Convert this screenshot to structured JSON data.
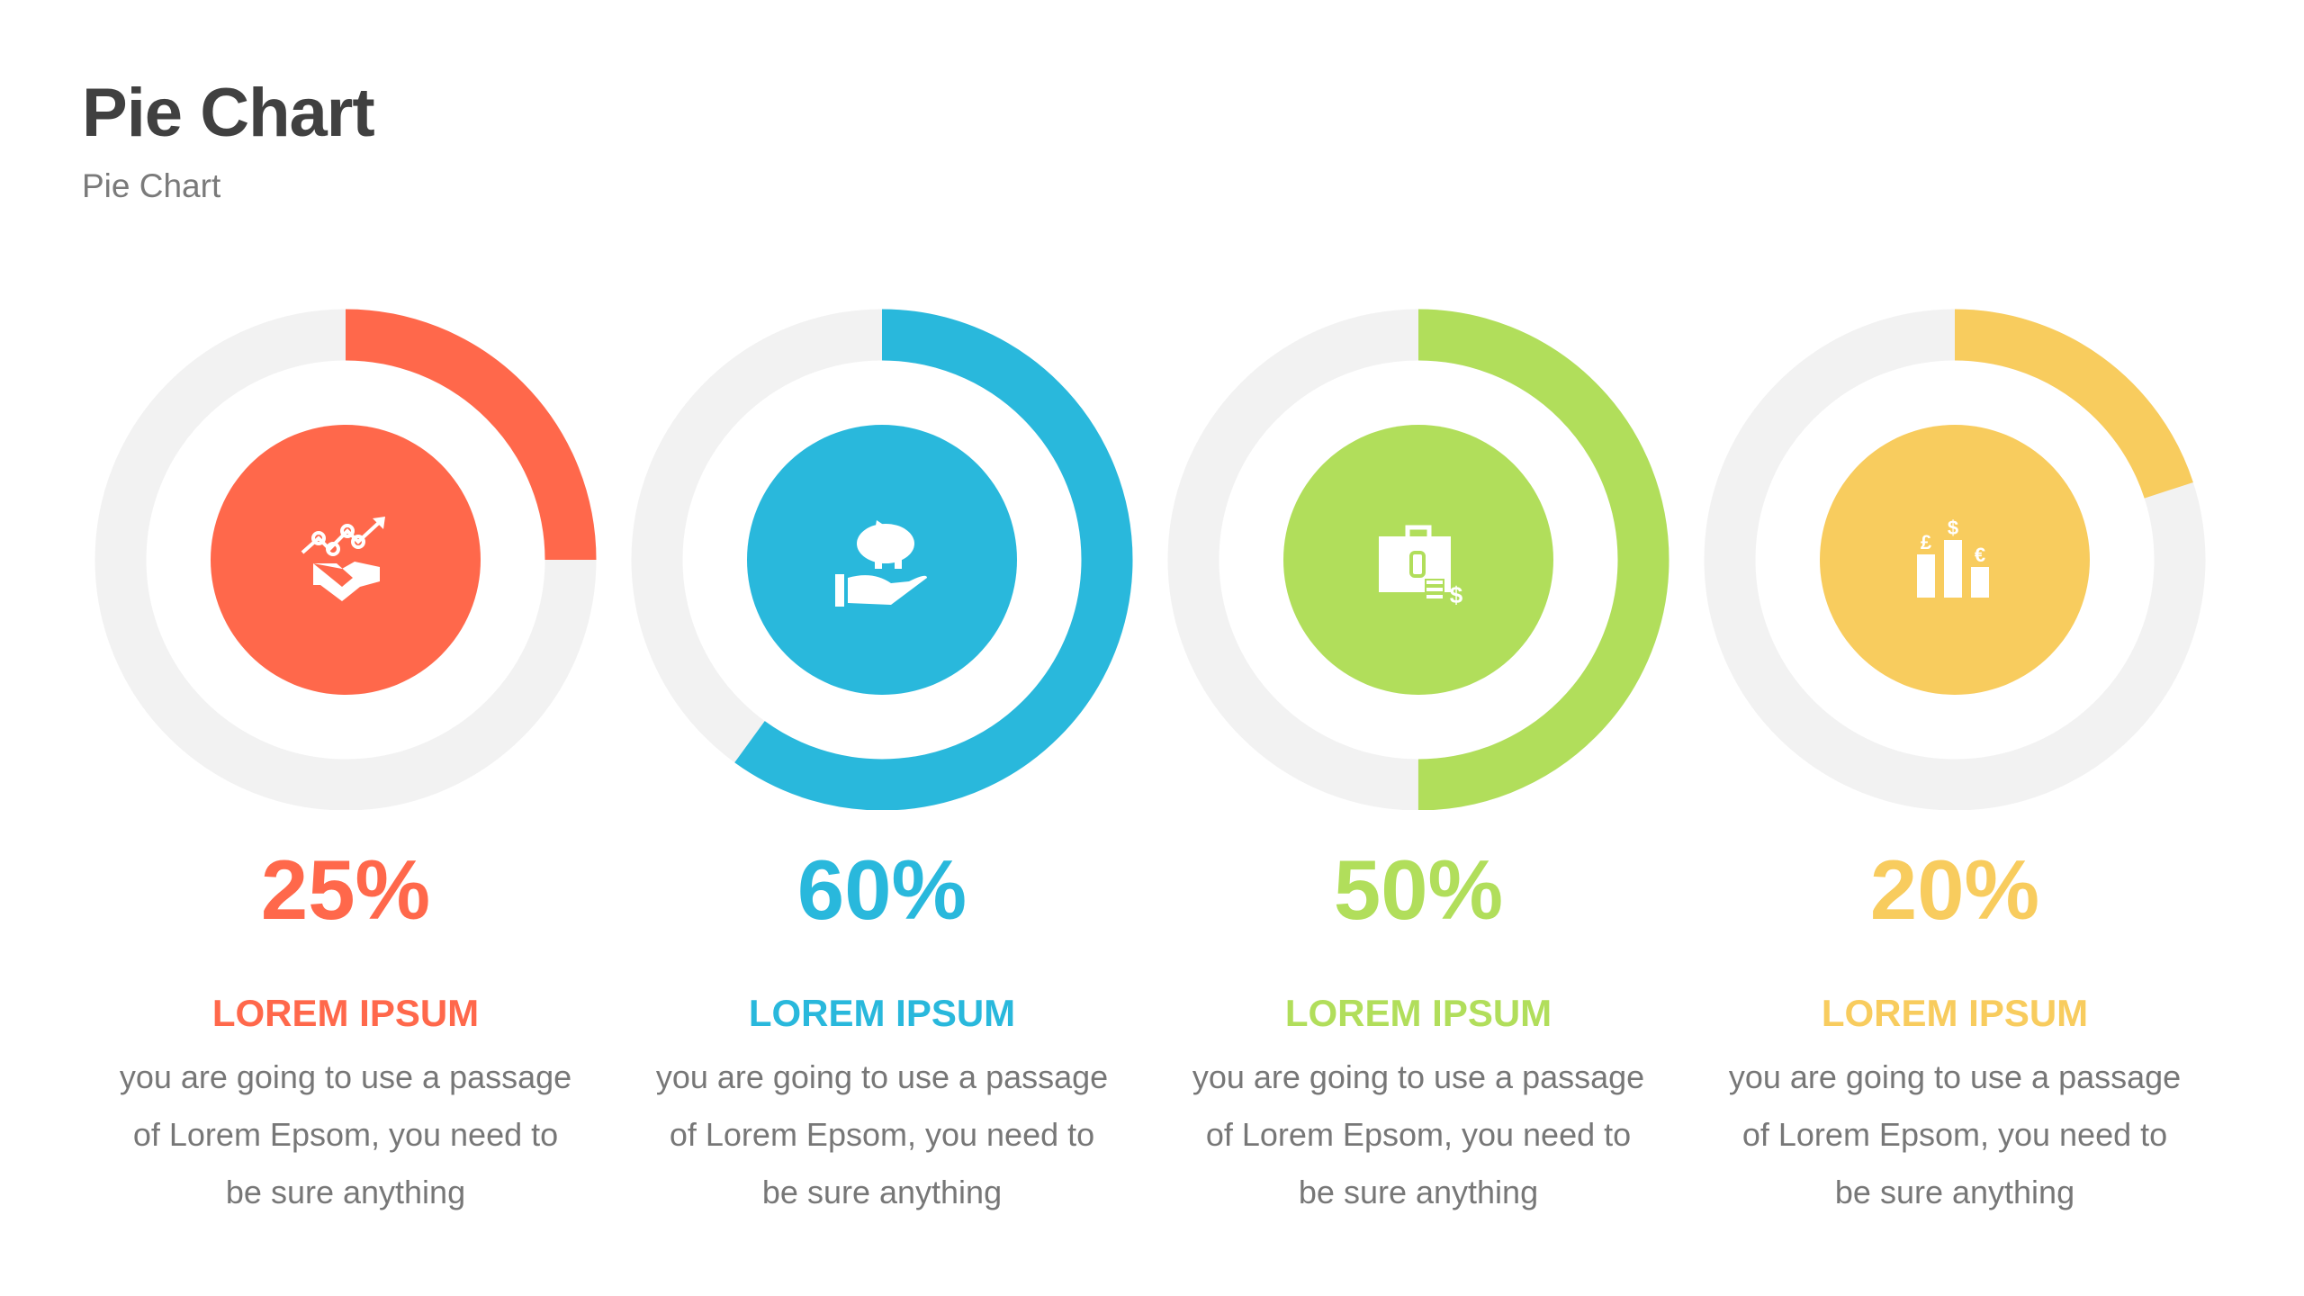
{
  "header": {
    "title": "Pie Chart",
    "subtitle": "Pie Chart"
  },
  "track_color": "#F2F2F2",
  "chart_data": {
    "type": "pie",
    "title": "Pie Chart",
    "items": [
      {
        "value": 25,
        "label": "25%",
        "heading": "LOREM IPSUM",
        "text": "you are going to use a passage of Lorem Epsom, you need to be sure anything",
        "color": "#FF684B",
        "icon": "handshake-growth-icon"
      },
      {
        "value": 60,
        "label": "60%",
        "heading": "LOREM IPSUM",
        "text": "you are going to use a passage of Lorem Epsom, you need to be sure anything",
        "color": "#29B8DC",
        "icon": "piggy-bank-hand-icon"
      },
      {
        "value": 50,
        "label": "50%",
        "heading": "LOREM IPSUM",
        "text": "you are going to use a passage of Lorem Epsom, you need to be sure anything",
        "color": "#B1DE5B",
        "icon": "briefcase-money-icon"
      },
      {
        "value": 20,
        "label": "20%",
        "heading": "LOREM IPSUM",
        "text": "you are going to use a passage of Lorem Epsom, you need to be sure anything",
        "color": "#F8CC5E",
        "icon": "currency-bars-icon"
      }
    ]
  }
}
